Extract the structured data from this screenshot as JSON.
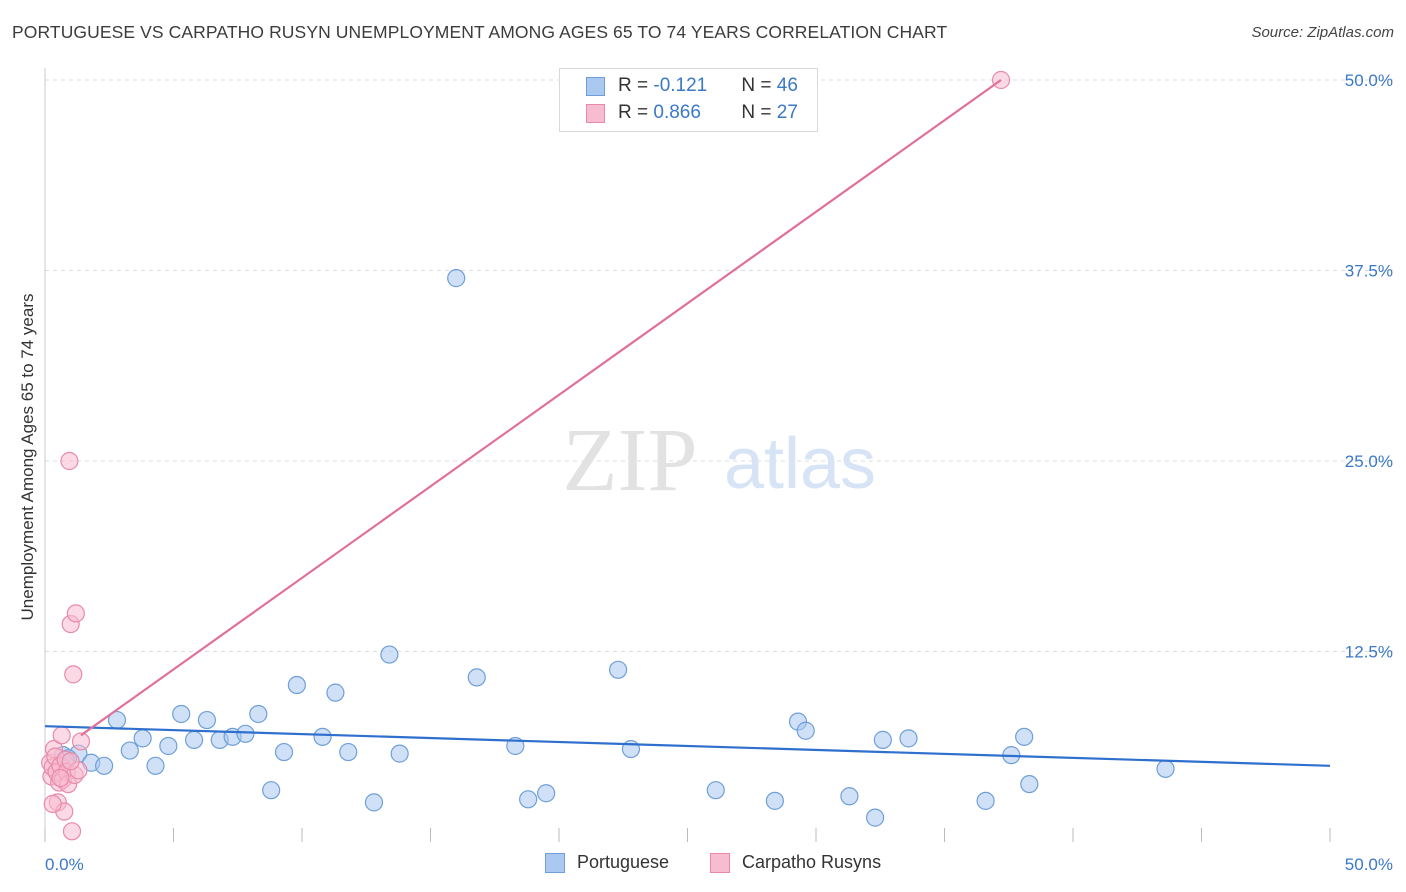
{
  "header": {
    "title": "PORTUGUESE VS CARPATHO RUSYN UNEMPLOYMENT AMONG AGES 65 TO 74 YEARS CORRELATION CHART",
    "source": "Source: ZipAtlas.com"
  },
  "watermark": {
    "zip": "ZIP",
    "atlas": "atlas"
  },
  "legend": {
    "rows": [
      {
        "r_label": "R = ",
        "r_value": "-0.121",
        "n_label": "N = ",
        "n_value": "46",
        "color": "#aac8f0",
        "border": "#6f9fd8"
      },
      {
        "r_label": "R = ",
        "r_value": "0.866",
        "n_label": "N = ",
        "n_value": "27",
        "color": "#f8bcd0",
        "border": "#e88aa8"
      }
    ]
  },
  "bottom_legend": [
    {
      "label": "Portuguese",
      "color": "#aac8f0",
      "border": "#6f9fd8"
    },
    {
      "label": "Carpatho Rusyns",
      "color": "#f8bcd0",
      "border": "#e88aa8"
    }
  ],
  "chart_data": {
    "type": "scatter",
    "title": "PORTUGUESE VS CARPATHO RUSYN UNEMPLOYMENT AMONG AGES 65 TO 74 YEARS CORRELATION CHART",
    "xlabel": "",
    "ylabel": "Unemployment Among Ages 65 to 74 years",
    "xlim": [
      0,
      50
    ],
    "ylim": [
      0,
      50
    ],
    "x_tick_labels": [
      "0.0%",
      "50.0%"
    ],
    "y_tick_values": [
      12.5,
      25.0,
      37.5,
      50.0
    ],
    "y_tick_labels": [
      "12.5%",
      "25.0%",
      "37.5%",
      "50.0%"
    ],
    "grid": true,
    "series": [
      {
        "name": "Portuguese",
        "color": "#6f9fd8",
        "fill": "#aac8f0",
        "line_color": "#2f6fce",
        "trend": {
          "x": [
            0,
            50
          ],
          "y": [
            7.6,
            5.0
          ]
        },
        "points": [
          [
            0.7,
            5.7
          ],
          [
            1.3,
            5.8
          ],
          [
            1.8,
            5.2
          ],
          [
            2.3,
            5.0
          ],
          [
            2.8,
            8.0
          ],
          [
            3.3,
            6.0
          ],
          [
            3.8,
            6.8
          ],
          [
            4.3,
            5.0
          ],
          [
            4.8,
            6.3
          ],
          [
            5.3,
            8.4
          ],
          [
            5.8,
            6.7
          ],
          [
            6.3,
            8.0
          ],
          [
            6.8,
            6.7
          ],
          [
            7.3,
            6.9
          ],
          [
            7.8,
            7.1
          ],
          [
            8.3,
            8.4
          ],
          [
            8.8,
            3.4
          ],
          [
            9.3,
            5.9
          ],
          [
            9.8,
            10.3
          ],
          [
            10.8,
            6.9
          ],
          [
            11.3,
            9.8
          ],
          [
            11.8,
            5.9
          ],
          [
            12.8,
            2.6
          ],
          [
            13.4,
            12.3
          ],
          [
            13.8,
            5.8
          ],
          [
            16.0,
            37.0
          ],
          [
            16.8,
            10.8
          ],
          [
            18.3,
            6.3
          ],
          [
            18.8,
            2.8
          ],
          [
            19.5,
            3.2
          ],
          [
            22.3,
            11.3
          ],
          [
            22.8,
            6.1
          ],
          [
            26.1,
            3.4
          ],
          [
            28.4,
            2.7
          ],
          [
            29.3,
            7.9
          ],
          [
            29.6,
            7.3
          ],
          [
            31.3,
            3.0
          ],
          [
            32.3,
            1.6
          ],
          [
            32.6,
            6.7
          ],
          [
            33.6,
            6.8
          ],
          [
            36.6,
            2.7
          ],
          [
            37.6,
            5.7
          ],
          [
            38.1,
            6.9
          ],
          [
            38.3,
            3.8
          ],
          [
            43.6,
            4.8
          ],
          [
            0.9,
            5.5
          ]
        ]
      },
      {
        "name": "Carpatho Rusyns",
        "color": "#e88aa8",
        "fill": "#f8bcd0",
        "line_color": "#e0709a",
        "trend": {
          "x": [
            1.4,
            37.2
          ],
          "y": [
            7.0,
            50.0
          ]
        },
        "points": [
          [
            0.2,
            5.2
          ],
          [
            0.25,
            4.3
          ],
          [
            0.3,
            4.9
          ],
          [
            0.35,
            6.1
          ],
          [
            0.4,
            5.6
          ],
          [
            0.45,
            4.6
          ],
          [
            0.5,
            2.6
          ],
          [
            0.55,
            3.9
          ],
          [
            0.6,
            5.0
          ],
          [
            0.65,
            7.0
          ],
          [
            0.7,
            4.1
          ],
          [
            0.75,
            2.0
          ],
          [
            0.8,
            5.4
          ],
          [
            0.85,
            4.6
          ],
          [
            0.9,
            3.8
          ],
          [
            0.95,
            25.0
          ],
          [
            1.0,
            14.3
          ],
          [
            1.05,
            0.7
          ],
          [
            1.1,
            11.0
          ],
          [
            1.15,
            4.4
          ],
          [
            1.2,
            15.0
          ],
          [
            1.3,
            4.7
          ],
          [
            1.4,
            6.6
          ],
          [
            0.3,
            2.5
          ],
          [
            0.6,
            4.2
          ],
          [
            1.0,
            5.3
          ],
          [
            37.2,
            50.0
          ]
        ]
      }
    ]
  }
}
